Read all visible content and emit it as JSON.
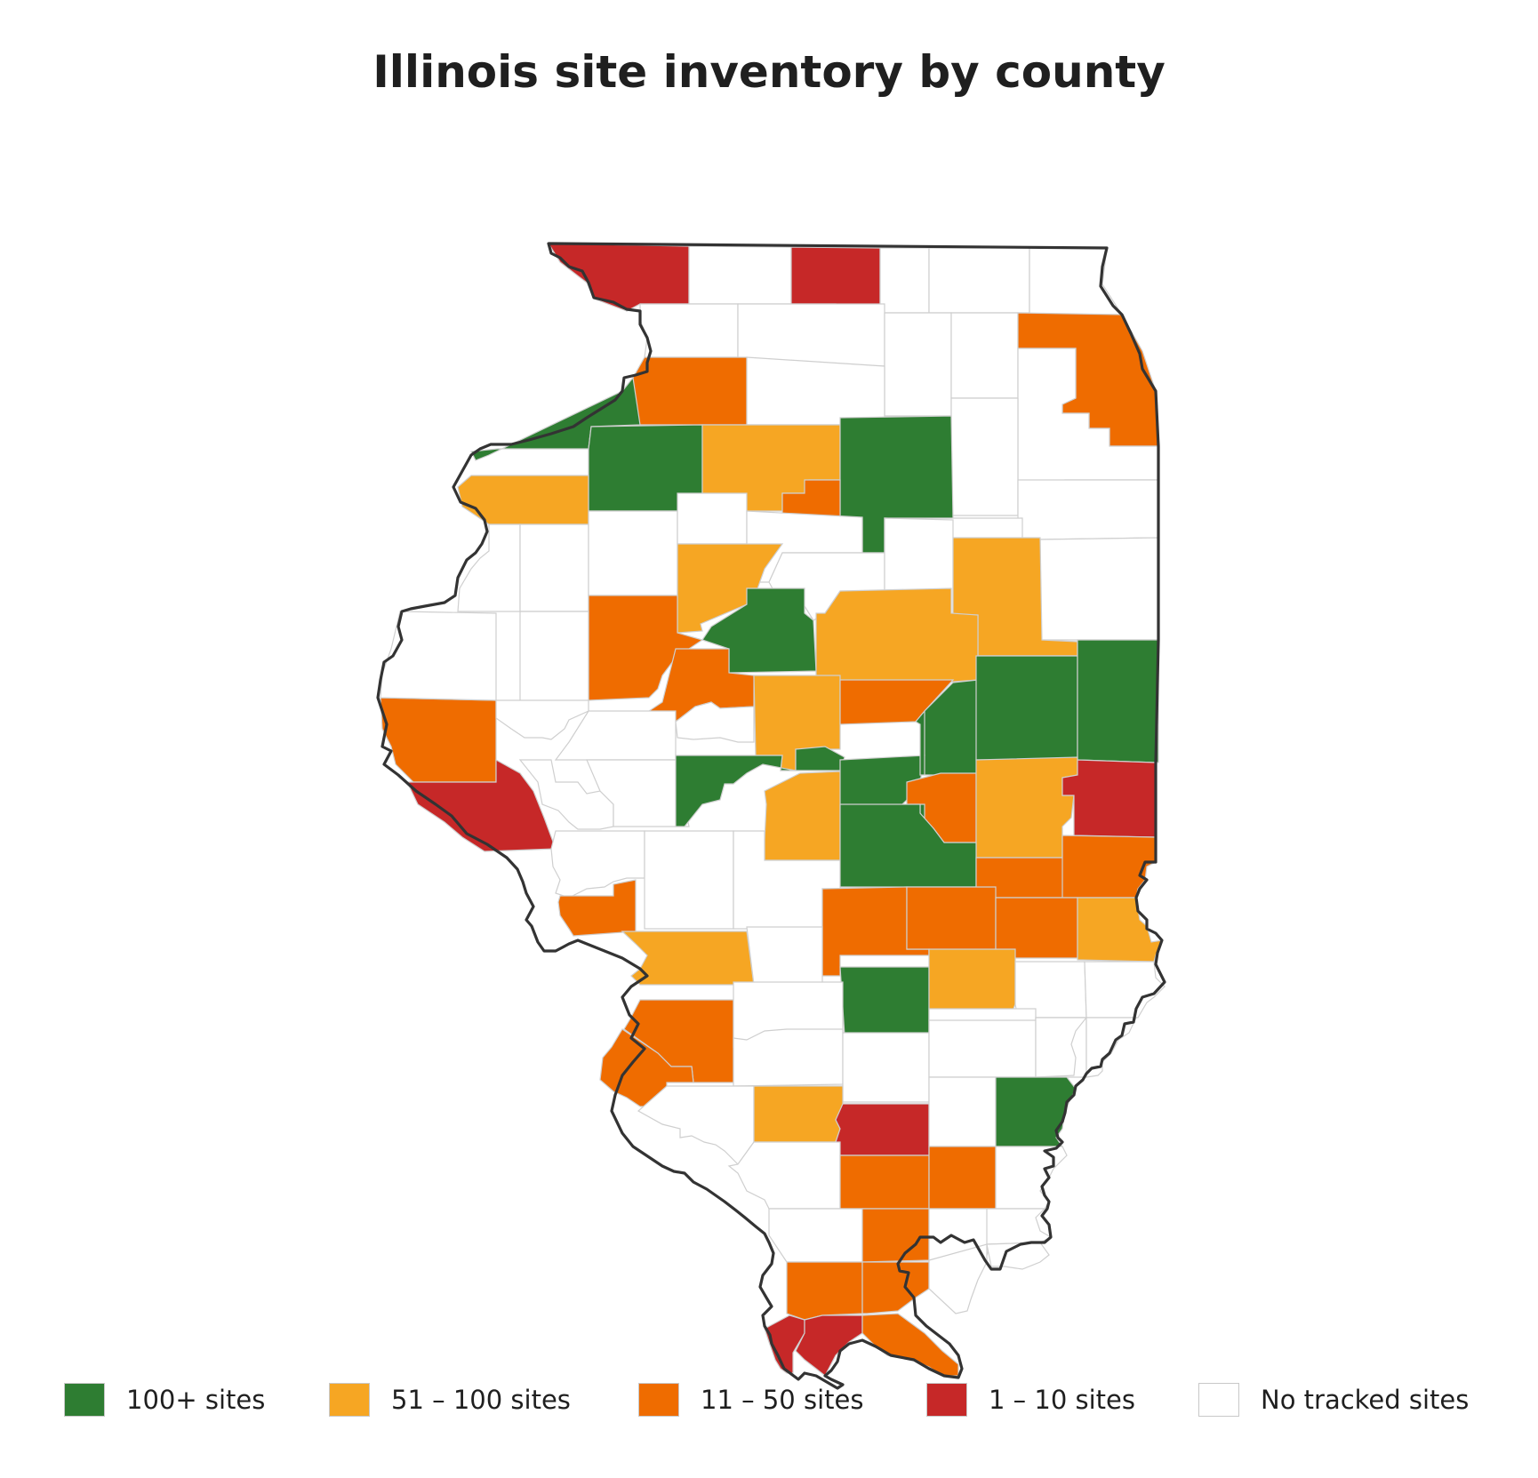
{
  "title": "Illinois site inventory by county",
  "colors": {
    "100+": "#2e7d32",
    "51-100": "#f6a623",
    "11-50": "#ef6c00",
    "1-10": "#c62828",
    "none": "#ffffff",
    "outline": "#333333",
    "county_border": "#cfcfcf"
  },
  "legend": [
    {
      "label": "100+ sites",
      "color": "#2e7d32"
    },
    {
      "label": "51 – 100 sites",
      "color": "#f6a623"
    },
    {
      "label": "11 – 50 sites",
      "color": "#ef6c00"
    },
    {
      "label": "1 – 10 sites",
      "color": "#c62828"
    },
    {
      "label": "No tracked sites",
      "color": "#ffffff"
    }
  ]
}
